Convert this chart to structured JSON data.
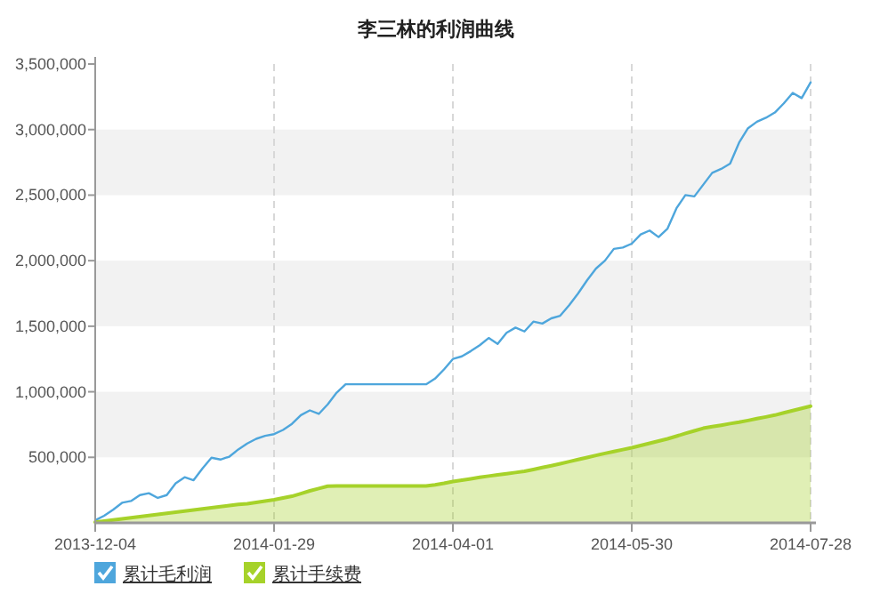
{
  "chart_data": {
    "type": "line",
    "title": "李三林的利润曲线",
    "categories": [
      "2013-12-04",
      null,
      null,
      null,
      null,
      null,
      null,
      null,
      null,
      null,
      null,
      null,
      null,
      null,
      null,
      null,
      null,
      null,
      null,
      null,
      "2014-01-29",
      null,
      null,
      null,
      null,
      null,
      null,
      null,
      null,
      null,
      null,
      null,
      null,
      null,
      null,
      null,
      null,
      null,
      null,
      null,
      "2014-04-01",
      null,
      null,
      null,
      null,
      null,
      null,
      null,
      null,
      null,
      null,
      null,
      null,
      null,
      null,
      null,
      null,
      null,
      null,
      null,
      "2014-05-30",
      null,
      null,
      null,
      null,
      null,
      null,
      null,
      null,
      null,
      null,
      null,
      null,
      null,
      null,
      null,
      null,
      null,
      null,
      null,
      "2014-07-28"
    ],
    "series": [
      {
        "name": "累计毛利润",
        "type": "line",
        "color": "#4ea6dc",
        "values": [
          20000,
          54000,
          100000,
          153000,
          167000,
          212000,
          226000,
          190000,
          212000,
          302000,
          348000,
          325000,
          416000,
          497000,
          483000,
          505000,
          560000,
          605000,
          641000,
          664000,
          677000,
          709000,
          755000,
          822000,
          858000,
          831000,
          904000,
          993000,
          1057000,
          1057000,
          1057000,
          1057000,
          1057000,
          1057000,
          1057000,
          1057000,
          1057000,
          1057000,
          1100000,
          1170000,
          1250000,
          1270000,
          1310000,
          1355000,
          1410000,
          1365000,
          1450000,
          1490000,
          1460000,
          1535000,
          1520000,
          1560000,
          1580000,
          1660000,
          1750000,
          1850000,
          1940000,
          2000000,
          2090000,
          2100000,
          2130000,
          2200000,
          2230000,
          2180000,
          2245000,
          2400000,
          2500000,
          2490000,
          2580000,
          2670000,
          2700000,
          2740000,
          2900000,
          3010000,
          3060000,
          3090000,
          3130000,
          3200000,
          3280000,
          3240000,
          3360000
        ]
      },
      {
        "name": "累计手续费",
        "type": "area",
        "color": "#a6d22a",
        "values": [
          5000,
          13000,
          22000,
          30000,
          39000,
          47000,
          56000,
          64000,
          73000,
          81000,
          90000,
          98000,
          107000,
          115000,
          124000,
          132000,
          140000,
          146000,
          156000,
          166000,
          176000,
          190000,
          203000,
          223000,
          244000,
          262000,
          280000,
          282000,
          282000,
          282000,
          282000,
          282000,
          282000,
          282000,
          282000,
          282000,
          282000,
          282000,
          290000,
          302000,
          316000,
          326000,
          336000,
          347000,
          357000,
          366000,
          375000,
          384000,
          393000,
          407000,
          422000,
          436000,
          451000,
          467000,
          483000,
          499000,
          515000,
          530000,
          544000,
          559000,
          573000,
          590000,
          607000,
          624000,
          641000,
          661000,
          682000,
          702000,
          722000,
          734000,
          745000,
          757000,
          768000,
          781000,
          795000,
          808000,
          822000,
          839000,
          856000,
          873000,
          890000
        ]
      }
    ],
    "ylim": [
      0,
      3500000
    ],
    "yticks": [
      {
        "value": 500000,
        "label": "500,000"
      },
      {
        "value": 1000000,
        "label": "1,000,000"
      },
      {
        "value": 1500000,
        "label": "1,500,000"
      },
      {
        "value": 2000000,
        "label": "2,000,000"
      },
      {
        "value": 2500000,
        "label": "2,500,000"
      },
      {
        "value": 3000000,
        "label": "3,000,000"
      },
      {
        "value": 3500000,
        "label": "3,500,000"
      }
    ],
    "bands": [
      {
        "axis": "y",
        "from": 500000,
        "to": 1000000,
        "color": "#f2f2f2"
      },
      {
        "axis": "y",
        "from": 1500000,
        "to": 2000000,
        "color": "#f2f2f2"
      },
      {
        "axis": "y",
        "from": 2500000,
        "to": 3000000,
        "color": "#f2f2f2"
      }
    ],
    "grid": "x",
    "legend": "bottom left"
  }
}
